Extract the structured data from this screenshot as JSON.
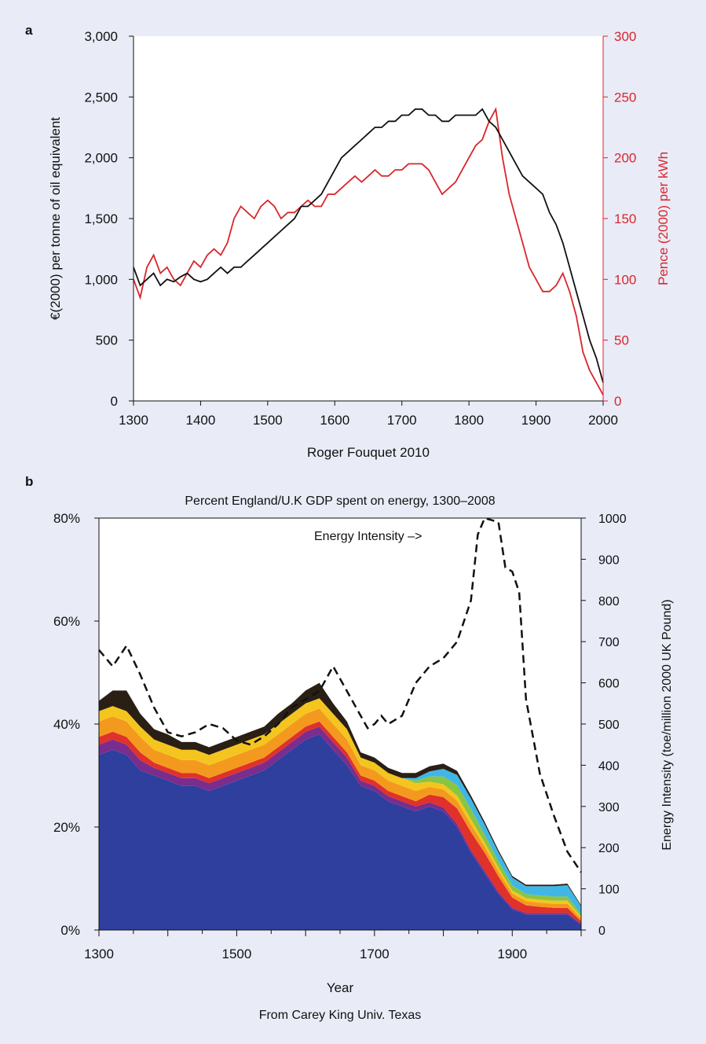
{
  "chart_data": [
    {
      "panel_label": "a",
      "type": "line",
      "xlabel": "Roger Fouquet 2010",
      "ylabel": "€(2000) per tonne of oil equivalent",
      "y2label": "Pence (2000) per kWh",
      "xlim": [
        1300,
        2000
      ],
      "ylim": [
        0,
        3000
      ],
      "y2lim": [
        0,
        300
      ],
      "x_ticks": [
        "1300",
        "1400",
        "1500",
        "1600",
        "1700",
        "1800",
        "1900",
        "2000"
      ],
      "y_ticks": [
        "0",
        "500",
        "1,000",
        "1,500",
        "2,000",
        "2,500",
        "3,000"
      ],
      "y2_ticks": [
        "0",
        "50",
        "100",
        "150",
        "200",
        "250",
        "300"
      ],
      "grid": false,
      "colors": {
        "left_series": "#111111",
        "right_series": "#d9262b",
        "right_axis": "#d9262b"
      },
      "series": [
        {
          "axis": "left",
          "color": "#111111",
          "x": [
            1300,
            1310,
            1320,
            1330,
            1340,
            1350,
            1360,
            1370,
            1380,
            1390,
            1400,
            1410,
            1420,
            1430,
            1440,
            1450,
            1460,
            1470,
            1480,
            1490,
            1500,
            1510,
            1520,
            1530,
            1540,
            1550,
            1560,
            1570,
            1580,
            1590,
            1600,
            1610,
            1620,
            1630,
            1640,
            1650,
            1660,
            1670,
            1680,
            1690,
            1700,
            1710,
            1720,
            1730,
            1740,
            1750,
            1760,
            1770,
            1780,
            1790,
            1800,
            1810,
            1820,
            1830,
            1840,
            1850,
            1860,
            1870,
            1880,
            1890,
            1900,
            1910,
            1920,
            1930,
            1940,
            1950,
            1960,
            1970,
            1980,
            1990,
            2000
          ],
          "y": [
            1100,
            950,
            1000,
            1050,
            950,
            1000,
            980,
            1020,
            1050,
            1000,
            980,
            1000,
            1050,
            1100,
            1050,
            1100,
            1100,
            1150,
            1200,
            1250,
            1300,
            1350,
            1400,
            1450,
            1500,
            1600,
            1600,
            1650,
            1700,
            1800,
            1900,
            2000,
            2050,
            2100,
            2150,
            2200,
            2250,
            2250,
            2300,
            2300,
            2350,
            2350,
            2400,
            2400,
            2350,
            2350,
            2300,
            2300,
            2350,
            2350,
            2350,
            2350,
            2400,
            2300,
            2250,
            2150,
            2050,
            1950,
            1850,
            1800,
            1750,
            1700,
            1550,
            1450,
            1300,
            1100,
            900,
            700,
            500,
            350,
            150
          ]
        },
        {
          "axis": "right",
          "color": "#d9262b",
          "x": [
            1300,
            1310,
            1320,
            1330,
            1340,
            1350,
            1360,
            1370,
            1380,
            1390,
            1400,
            1410,
            1420,
            1430,
            1440,
            1450,
            1460,
            1470,
            1480,
            1490,
            1500,
            1510,
            1520,
            1530,
            1540,
            1550,
            1560,
            1570,
            1580,
            1590,
            1600,
            1610,
            1620,
            1630,
            1640,
            1650,
            1660,
            1670,
            1680,
            1690,
            1700,
            1710,
            1720,
            1730,
            1740,
            1750,
            1760,
            1770,
            1780,
            1790,
            1800,
            1810,
            1820,
            1830,
            1840,
            1850,
            1860,
            1870,
            1880,
            1890,
            1900,
            1910,
            1920,
            1930,
            1940,
            1950,
            1960,
            1970,
            1980,
            1990,
            2000
          ],
          "y": [
            100,
            85,
            110,
            120,
            105,
            110,
            100,
            95,
            105,
            115,
            110,
            120,
            125,
            120,
            130,
            150,
            160,
            155,
            150,
            160,
            165,
            160,
            150,
            155,
            155,
            160,
            165,
            160,
            160,
            170,
            170,
            175,
            180,
            185,
            180,
            185,
            190,
            185,
            185,
            190,
            190,
            195,
            195,
            195,
            190,
            180,
            170,
            175,
            180,
            190,
            200,
            210,
            215,
            230,
            240,
            200,
            170,
            150,
            130,
            110,
            100,
            90,
            90,
            95,
            105,
            90,
            70,
            40,
            25,
            15,
            5
          ]
        }
      ]
    },
    {
      "panel_label": "b",
      "type": "area",
      "title": "Percent England/U.K GDP spent on energy, 1300–2008",
      "xlabel": "Year",
      "ylabel": "",
      "y2label": "Energy Intensity (toe/million 2000 UK Pound)",
      "annotation": "Energy Intensity –>",
      "source_note": "From Carey King Univ. Texas",
      "xlim": [
        1300,
        2000
      ],
      "ylim": [
        0,
        80
      ],
      "y2lim": [
        0,
        1000
      ],
      "x_ticks": [
        "1300",
        "1500",
        "1700",
        "1900"
      ],
      "y_ticks": [
        "0%",
        "20%",
        "40%",
        "60%",
        "80%"
      ],
      "y2_ticks": [
        "0",
        "100",
        "200",
        "300",
        "400",
        "500",
        "600",
        "700",
        "800",
        "900",
        "1000"
      ],
      "grid": false,
      "x": [
        1300,
        1320,
        1340,
        1360,
        1380,
        1400,
        1420,
        1440,
        1460,
        1480,
        1500,
        1520,
        1540,
        1560,
        1580,
        1600,
        1620,
        1640,
        1660,
        1680,
        1700,
        1720,
        1740,
        1760,
        1780,
        1800,
        1820,
        1840,
        1860,
        1880,
        1900,
        1920,
        1940,
        1960,
        1980,
        2000
      ],
      "series": [
        {
          "name": "",
          "color": "#2e3f9e",
          "values": [
            34,
            35,
            34,
            31,
            30,
            29,
            28,
            28,
            27,
            28,
            29,
            30,
            31,
            33,
            35,
            37,
            38,
            35,
            32,
            28,
            27,
            25,
            24,
            23,
            24,
            23,
            20,
            15,
            11,
            7,
            4,
            3,
            3,
            3,
            3,
            1
          ]
        },
        {
          "name": "",
          "color": "#7a2d8c",
          "values": [
            2,
            2,
            2,
            2,
            1.5,
            1.5,
            1.5,
            1.5,
            1.5,
            1.5,
            1.5,
            1.5,
            1.5,
            1.5,
            1.5,
            1.5,
            1.5,
            1.5,
            1.5,
            1,
            1,
            1,
            1,
            1,
            0.8,
            0.8,
            0.6,
            0.5,
            0.5,
            0.4,
            0.3,
            0.3,
            0.3,
            0.3,
            0.3,
            0.2
          ]
        },
        {
          "name": "",
          "color": "#e0312a",
          "values": [
            1.5,
            1.5,
            1.5,
            1.5,
            1,
            1,
            1,
            1,
            1,
            1,
            1,
            1,
            1,
            1,
            1,
            1,
            1,
            1,
            1,
            1,
            1,
            1,
            1,
            1,
            1.5,
            2,
            3,
            3.5,
            3.5,
            3,
            2,
            1.5,
            1.2,
            1,
            1,
            0.5
          ]
        },
        {
          "name": "",
          "color": "#f39a1e",
          "values": [
            3,
            3,
            3,
            3,
            2.5,
            2.5,
            2.5,
            2.5,
            2.5,
            2.5,
            2.5,
            2.5,
            2.5,
            2.5,
            2.5,
            2.5,
            2.5,
            2.5,
            2.5,
            2,
            2,
            2,
            2,
            2,
            1.5,
            1.5,
            1.5,
            1.5,
            1.2,
            1,
            0.8,
            0.8,
            0.8,
            0.8,
            0.8,
            0.5
          ]
        },
        {
          "name": "",
          "color": "#f5c51f",
          "values": [
            2,
            2,
            2,
            2,
            2,
            2,
            2,
            2,
            2,
            2,
            2,
            2,
            2,
            2,
            2,
            2,
            2,
            2,
            2,
            1.5,
            1.5,
            1.5,
            1.5,
            1.5,
            1,
            1,
            1,
            1,
            0.8,
            0.7,
            0.6,
            0.6,
            0.6,
            0.6,
            0.6,
            0.4
          ]
        },
        {
          "name": "",
          "color": "#8bc53f",
          "values": [
            0,
            0,
            0,
            0,
            0,
            0,
            0,
            0,
            0,
            0,
            0,
            0,
            0,
            0,
            0,
            0,
            0,
            0,
            0,
            0,
            0,
            0,
            0,
            0.5,
            1,
            1.5,
            2,
            2,
            1.5,
            1.2,
            1,
            0.8,
            0.8,
            0.8,
            0.8,
            0.5
          ]
        },
        {
          "name": "",
          "color": "#41b6e6",
          "values": [
            0,
            0,
            0,
            0,
            0,
            0,
            0,
            0,
            0,
            0,
            0,
            0,
            0,
            0,
            0,
            0,
            0,
            0,
            0,
            0,
            0,
            0,
            0,
            0.5,
            1,
            1.5,
            2,
            2,
            2,
            1.8,
            1.5,
            1.5,
            1.8,
            2,
            2.2,
            1.5
          ]
        },
        {
          "name": "",
          "color": "#2a1f14",
          "values": [
            2,
            3,
            4,
            2.5,
            2,
            2,
            1.5,
            1.5,
            1.5,
            1.5,
            1.5,
            1.5,
            1.5,
            2,
            2,
            2.5,
            3,
            2,
            1.5,
            1,
            1,
            1,
            1,
            1,
            1,
            1,
            0.8,
            0.6,
            0.5,
            0.4,
            0.3,
            0.3,
            0.3,
            0.3,
            0.3,
            0.2
          ]
        }
      ],
      "energy_intensity": {
        "style": "dashed",
        "color": "#111111",
        "x": [
          1300,
          1320,
          1340,
          1360,
          1380,
          1400,
          1420,
          1440,
          1460,
          1480,
          1500,
          1520,
          1540,
          1560,
          1580,
          1600,
          1620,
          1640,
          1660,
          1680,
          1690,
          1700,
          1710,
          1720,
          1740,
          1760,
          1780,
          1800,
          1820,
          1840,
          1850,
          1860,
          1880,
          1890,
          1900,
          1910,
          1920,
          1940,
          1960,
          1980,
          2000
        ],
        "values": [
          680,
          640,
          690,
          620,
          540,
          480,
          470,
          480,
          500,
          490,
          460,
          450,
          470,
          500,
          540,
          560,
          580,
          640,
          580,
          520,
          490,
          500,
          520,
          500,
          520,
          600,
          640,
          660,
          700,
          800,
          960,
          1000,
          990,
          880,
          870,
          820,
          560,
          380,
          280,
          190,
          140
        ]
      }
    }
  ]
}
